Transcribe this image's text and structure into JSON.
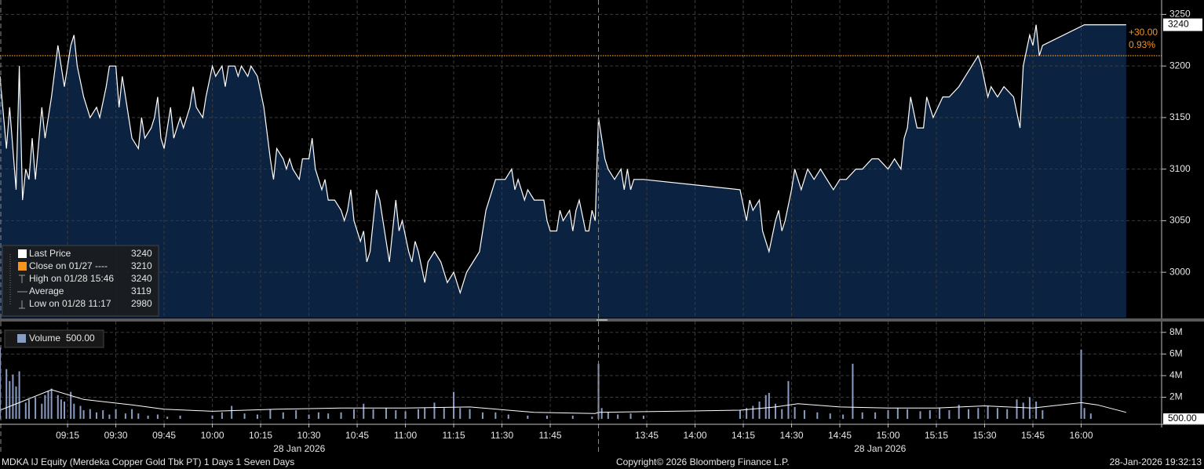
{
  "chart_data": [
    {
      "type": "area",
      "xlim": [
        [
          "08:54",
          "12:00"
        ],
        [
          "13:30",
          "16:25"
        ]
      ],
      "ylim": [
        2956,
        3264
      ],
      "yticks": [
        3000,
        3050,
        3100,
        3150,
        3200,
        3250
      ],
      "grid": true,
      "x": [
        "08:54",
        "08:56",
        "08:57",
        "08:59",
        "09:00",
        "09:01",
        "09:02",
        "09:03",
        "09:04",
        "09:05",
        "09:07",
        "09:08",
        "09:10",
        "09:12",
        "09:13",
        "09:14",
        "09:16",
        "09:17",
        "09:18",
        "09:20",
        "09:22",
        "09:24",
        "09:25",
        "09:27",
        "09:28",
        "09:30",
        "09:31",
        "09:32",
        "09:34",
        "09:35",
        "09:37",
        "09:38",
        "09:39",
        "09:41",
        "09:42",
        "09:43",
        "09:44",
        "09:45",
        "09:47",
        "09:48",
        "09:50",
        "09:51",
        "09:53",
        "09:54",
        "09:55",
        "09:57",
        "09:58",
        "10:00",
        "10:01",
        "10:03",
        "10:04",
        "10:05",
        "10:07",
        "10:08",
        "10:09",
        "10:11",
        "10:12",
        "10:14",
        "10:16",
        "10:18",
        "10:19",
        "10:20",
        "10:22",
        "10:23",
        "10:24",
        "10:25",
        "10:27",
        "10:28",
        "10:30",
        "10:31",
        "10:32",
        "10:34",
        "10:35",
        "10:36",
        "10:38",
        "10:40",
        "10:41",
        "10:42",
        "10:43",
        "10:44",
        "10:46",
        "10:47",
        "10:48",
        "10:49",
        "10:51",
        "10:52",
        "10:54",
        "10:55",
        "10:57",
        "10:58",
        "10:59",
        "11:01",
        "11:02",
        "11:03",
        "11:04",
        "11:06",
        "11:07",
        "11:09",
        "11:11",
        "11:13",
        "11:15",
        "11:17",
        "11:19",
        "11:21",
        "11:23",
        "11:24",
        "11:25",
        "11:27",
        "11:28",
        "11:31",
        "11:33",
        "11:34",
        "11:35",
        "11:37",
        "11:38",
        "11:40",
        "11:43",
        "11:44",
        "11:45",
        "11:47",
        "11:48",
        "11:49",
        "11:51",
        "11:52",
        "11:53",
        "11:54",
        "11:56",
        "11:57",
        "11:58",
        "11:59",
        "13:30",
        "13:32",
        "13:33",
        "13:35",
        "13:37",
        "13:38",
        "13:39",
        "13:40",
        "13:41",
        "13:44",
        "14:14",
        "14:16",
        "14:17",
        "14:18",
        "14:20",
        "14:21",
        "14:22",
        "14:23",
        "14:25",
        "14:26",
        "14:27",
        "14:28",
        "14:30",
        "14:31",
        "14:33",
        "14:35",
        "14:37",
        "14:39",
        "14:41",
        "14:43",
        "14:45",
        "14:47",
        "14:50",
        "14:52",
        "14:55",
        "14:57",
        "15:00",
        "15:02",
        "15:04",
        "15:05",
        "15:06",
        "15:07",
        "15:09",
        "15:11",
        "15:12",
        "15:14",
        "15:17",
        "15:19",
        "15:22",
        "15:24",
        "15:26",
        "15:28",
        "15:29",
        "15:31",
        "15:32",
        "15:34",
        "15:36",
        "15:39",
        "15:41",
        "15:42",
        "15:44",
        "15:45",
        "15:46",
        "15:47",
        "15:48",
        "16:01",
        "16:14"
      ],
      "series": [
        {
          "name": "Last Price",
          "color": "#ffffff",
          "fill": "#0b2240",
          "last_value": 3240,
          "values": [
            3190,
            3120,
            3160,
            3080,
            3200,
            3070,
            3100,
            3090,
            3130,
            3090,
            3160,
            3130,
            3170,
            3220,
            3200,
            3180,
            3220,
            3230,
            3200,
            3170,
            3150,
            3160,
            3150,
            3180,
            3200,
            3200,
            3160,
            3190,
            3150,
            3130,
            3120,
            3150,
            3130,
            3140,
            3150,
            3170,
            3130,
            3120,
            3160,
            3130,
            3150,
            3140,
            3160,
            3180,
            3160,
            3150,
            3170,
            3200,
            3190,
            3200,
            3180,
            3200,
            3200,
            3190,
            3200,
            3190,
            3200,
            3190,
            3160,
            3110,
            3090,
            3120,
            3110,
            3100,
            3110,
            3100,
            3090,
            3110,
            3110,
            3130,
            3100,
            3080,
            3090,
            3070,
            3070,
            3060,
            3050,
            3060,
            3080,
            3050,
            3030,
            3040,
            3010,
            3020,
            3080,
            3070,
            3030,
            3010,
            3070,
            3040,
            3050,
            3020,
            3010,
            3030,
            3020,
            2990,
            3010,
            3020,
            3010,
            2990,
            3000,
            2980,
            3000,
            3010,
            3020,
            3040,
            3060,
            3080,
            3090,
            3090,
            3100,
            3080,
            3090,
            3070,
            3080,
            3070,
            3070,
            3050,
            3040,
            3040,
            3060,
            3050,
            3060,
            3040,
            3060,
            3070,
            3040,
            3040,
            3060,
            3050,
            3150,
            3110,
            3100,
            3090,
            3100,
            3080,
            3100,
            3080,
            3090,
            3090,
            3080,
            3050,
            3070,
            3060,
            3070,
            3040,
            3030,
            3020,
            3050,
            3060,
            3040,
            3050,
            3080,
            3100,
            3080,
            3100,
            3090,
            3100,
            3090,
            3080,
            3090,
            3090,
            3100,
            3100,
            3110,
            3110,
            3100,
            3110,
            3100,
            3130,
            3140,
            3170,
            3140,
            3140,
            3170,
            3150,
            3170,
            3170,
            3180,
            3190,
            3200,
            3210,
            3200,
            3170,
            3180,
            3170,
            3180,
            3170,
            3140,
            3200,
            3230,
            3220,
            3240,
            3210,
            3220,
            3240,
            3240
          ]
        }
      ],
      "reference_line": {
        "label": "Close on 01/27 ----",
        "value": 3210,
        "color": "#f7941d"
      },
      "annotations": [
        "+30.00",
        "0.93%"
      ],
      "stats": [
        {
          "label": "High on 01/28 15:46",
          "value": 3240
        },
        {
          "label": "Average",
          "value": 3119
        },
        {
          "label": "Low on 01/28 11:17",
          "value": 2980
        }
      ]
    },
    {
      "type": "bar",
      "xlim": [
        [
          "08:54",
          "12:00"
        ],
        [
          "13:30",
          "16:25"
        ]
      ],
      "ylim": [
        -430000,
        9000000
      ],
      "yticks": [
        {
          "value": 2000000,
          "label": "2M"
        },
        {
          "value": 4000000,
          "label": "4M"
        },
        {
          "value": 6000000,
          "label": "6M"
        },
        {
          "value": 8000000,
          "label": "8M"
        }
      ],
      "xticks": [
        "09:15",
        "09:30",
        "09:45",
        "10:00",
        "10:15",
        "10:30",
        "10:45",
        "11:00",
        "11:15",
        "11:30",
        "11:45",
        "13:45",
        "14:00",
        "14:15",
        "14:30",
        "14:45",
        "15:00",
        "15:15",
        "15:30",
        "15:45",
        "16:00"
      ],
      "dates": [
        "28 Jan 2026",
        "28 Jan 2026"
      ],
      "grid": true,
      "x": [
        "08:54",
        "08:56",
        "08:57",
        "08:58",
        "08:59",
        "09:00",
        "09:02",
        "09:03",
        "09:05",
        "09:07",
        "09:08",
        "09:09",
        "09:10",
        "09:12",
        "09:13",
        "09:14",
        "09:16",
        "09:17",
        "09:19",
        "09:20",
        "09:22",
        "09:24",
        "09:26",
        "09:28",
        "09:30",
        "09:33",
        "09:35",
        "09:37",
        "09:40",
        "09:43",
        "09:46",
        "09:50",
        "10:00",
        "10:03",
        "10:06",
        "10:10",
        "10:14",
        "10:18",
        "10:22",
        "10:26",
        "10:30",
        "10:33",
        "10:36",
        "10:40",
        "10:44",
        "10:47",
        "10:50",
        "10:54",
        "10:57",
        "11:00",
        "11:04",
        "11:06",
        "11:09",
        "11:12",
        "11:15",
        "11:17",
        "11:20",
        "11:24",
        "11:28",
        "11:32",
        "11:38",
        "11:44",
        "11:52",
        "11:58",
        "13:30",
        "13:31",
        "13:33",
        "13:36",
        "13:40",
        "13:44",
        "14:14",
        "14:16",
        "14:18",
        "14:20",
        "14:22",
        "14:23",
        "14:25",
        "14:27",
        "14:29",
        "14:31",
        "14:34",
        "14:38",
        "14:42",
        "14:46",
        "14:49",
        "14:52",
        "14:56",
        "15:00",
        "15:03",
        "15:06",
        "15:10",
        "15:13",
        "15:16",
        "15:19",
        "15:22",
        "15:25",
        "15:28",
        "15:31",
        "15:34",
        "15:37",
        "15:40",
        "15:42",
        "15:44",
        "15:46",
        "15:48",
        "16:00",
        "16:01",
        "16:03"
      ],
      "series": [
        {
          "name": "Volume",
          "color": "#8a9bc4",
          "last_value": 500,
          "last_value_label": "500.00",
          "values": [
            6600000,
            4600000,
            3500000,
            4100000,
            3000000,
            4400000,
            1500000,
            1800000,
            2000000,
            1400000,
            2200000,
            2600000,
            2800000,
            2200000,
            1800000,
            1600000,
            2500000,
            1400000,
            1200000,
            800000,
            900000,
            600000,
            800000,
            400000,
            900000,
            500000,
            900000,
            500000,
            300000,
            400000,
            200000,
            300000,
            300000,
            600000,
            1200000,
            500000,
            400000,
            900000,
            600000,
            800000,
            400000,
            600000,
            500000,
            600000,
            900000,
            1400000,
            900000,
            1000000,
            800000,
            700000,
            900000,
            1000000,
            1500000,
            1000000,
            2500000,
            1000000,
            900000,
            600000,
            600000,
            400000,
            300000,
            300000,
            300000,
            200000,
            5100000,
            1000000,
            600000,
            400000,
            500000,
            300000,
            800000,
            1000000,
            1200000,
            1600000,
            2200000,
            2400000,
            1400000,
            900000,
            3500000,
            1100000,
            800000,
            600000,
            500000,
            400000,
            5100000,
            600000,
            600000,
            800000,
            1000000,
            900000,
            700000,
            800000,
            1000000,
            800000,
            1300000,
            900000,
            1000000,
            1200000,
            1000000,
            900000,
            1800000,
            1500000,
            2000000,
            1600000,
            800000,
            6400000,
            1000000,
            500000
          ]
        },
        {
          "color": "#ffffff",
          "x": [
            "08:54",
            "09:00",
            "09:10",
            "09:20",
            "09:35",
            "09:45",
            "10:00",
            "10:20",
            "10:40",
            "11:00",
            "11:20",
            "11:40",
            "11:59",
            "13:30",
            "14:14",
            "14:25",
            "14:32",
            "14:45",
            "15:00",
            "15:15",
            "15:30",
            "15:45",
            "16:00",
            "16:05",
            "16:14"
          ],
          "values": [
            800000,
            1500000,
            2700000,
            1800000,
            1300000,
            900000,
            700000,
            900000,
            1000000,
            1000000,
            1100000,
            600000,
            500000,
            600000,
            800000,
            1100000,
            1400000,
            1100000,
            1000000,
            1000000,
            1200000,
            1000000,
            1500000,
            1300000,
            600000
          ]
        }
      ]
    }
  ],
  "footer": {
    "security": "MDKA IJ Equity (Merdeka Copper Gold Tbk PT) 1 Days 1 Seven Days",
    "copyright": "Copyright© 2026 Bloomberg Finance L.P.",
    "timestamp": "28-Jan-2026 19:32:13"
  }
}
